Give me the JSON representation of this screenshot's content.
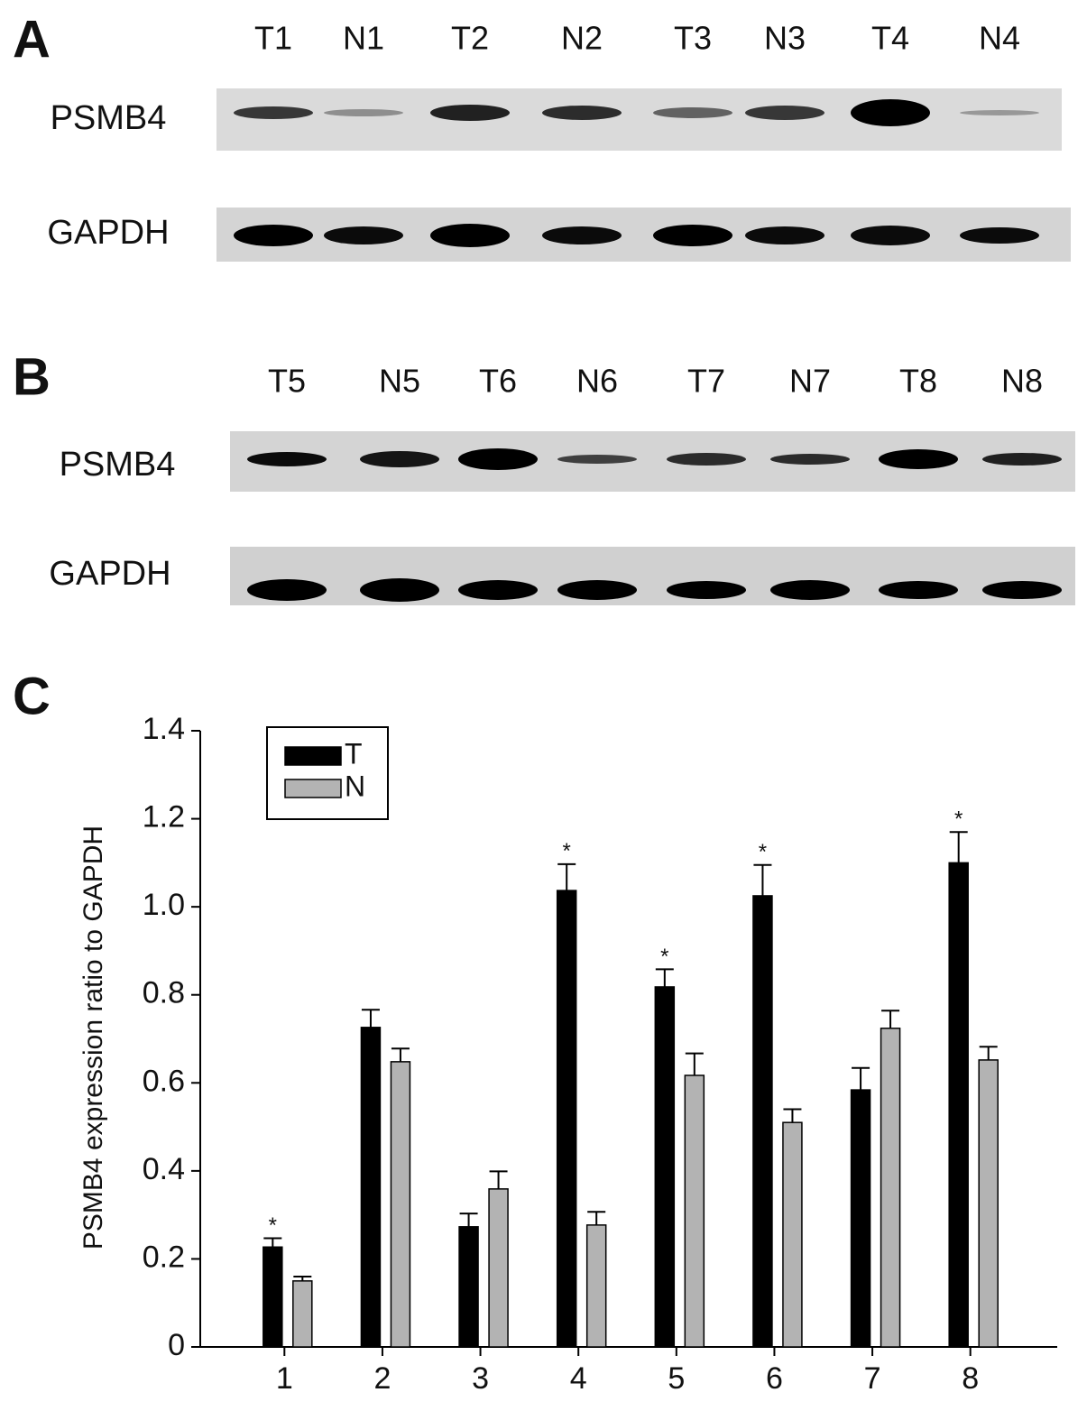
{
  "panels": {
    "a": {
      "label": "A",
      "lanes": [
        "T1",
        "N1",
        "T2",
        "N2",
        "T3",
        "N3",
        "T4",
        "N4"
      ],
      "rows": [
        "PSMB4",
        "GAPDH"
      ]
    },
    "b": {
      "label": "B",
      "lanes": [
        "T5",
        "N5",
        "T6",
        "N6",
        "T7",
        "N7",
        "T8",
        "N8"
      ],
      "rows": [
        "PSMB4",
        "GAPDH"
      ]
    }
  },
  "chart_data": {
    "type": "bar",
    "panel_label": "C",
    "y_label": "PSMB4 expression ratio to GAPDH",
    "categories": [
      "1",
      "2",
      "3",
      "4",
      "5",
      "6",
      "7",
      "8"
    ],
    "series": [
      {
        "name": "T",
        "color": "#000000",
        "values": [
          0.227,
          0.726,
          0.273,
          1.037,
          0.818,
          1.025,
          0.584,
          1.1
        ],
        "errors": [
          0.02,
          0.04,
          0.03,
          0.06,
          0.04,
          0.07,
          0.05,
          0.07
        ],
        "significance": [
          "*",
          null,
          null,
          "*",
          "*",
          "*",
          null,
          "*"
        ]
      },
      {
        "name": "N",
        "color": "#b3b3b3",
        "values": [
          0.15,
          0.648,
          0.359,
          0.277,
          0.617,
          0.51,
          0.724,
          0.652
        ],
        "errors": [
          0.01,
          0.03,
          0.04,
          0.03,
          0.05,
          0.03,
          0.04,
          0.03
        ]
      }
    ],
    "ylim": [
      0,
      1.4
    ],
    "yticks": [
      0,
      0.2,
      0.4,
      0.6,
      0.8,
      {
        "value": 1,
        "label": "1.0"
      },
      1.2,
      1.4
    ]
  }
}
